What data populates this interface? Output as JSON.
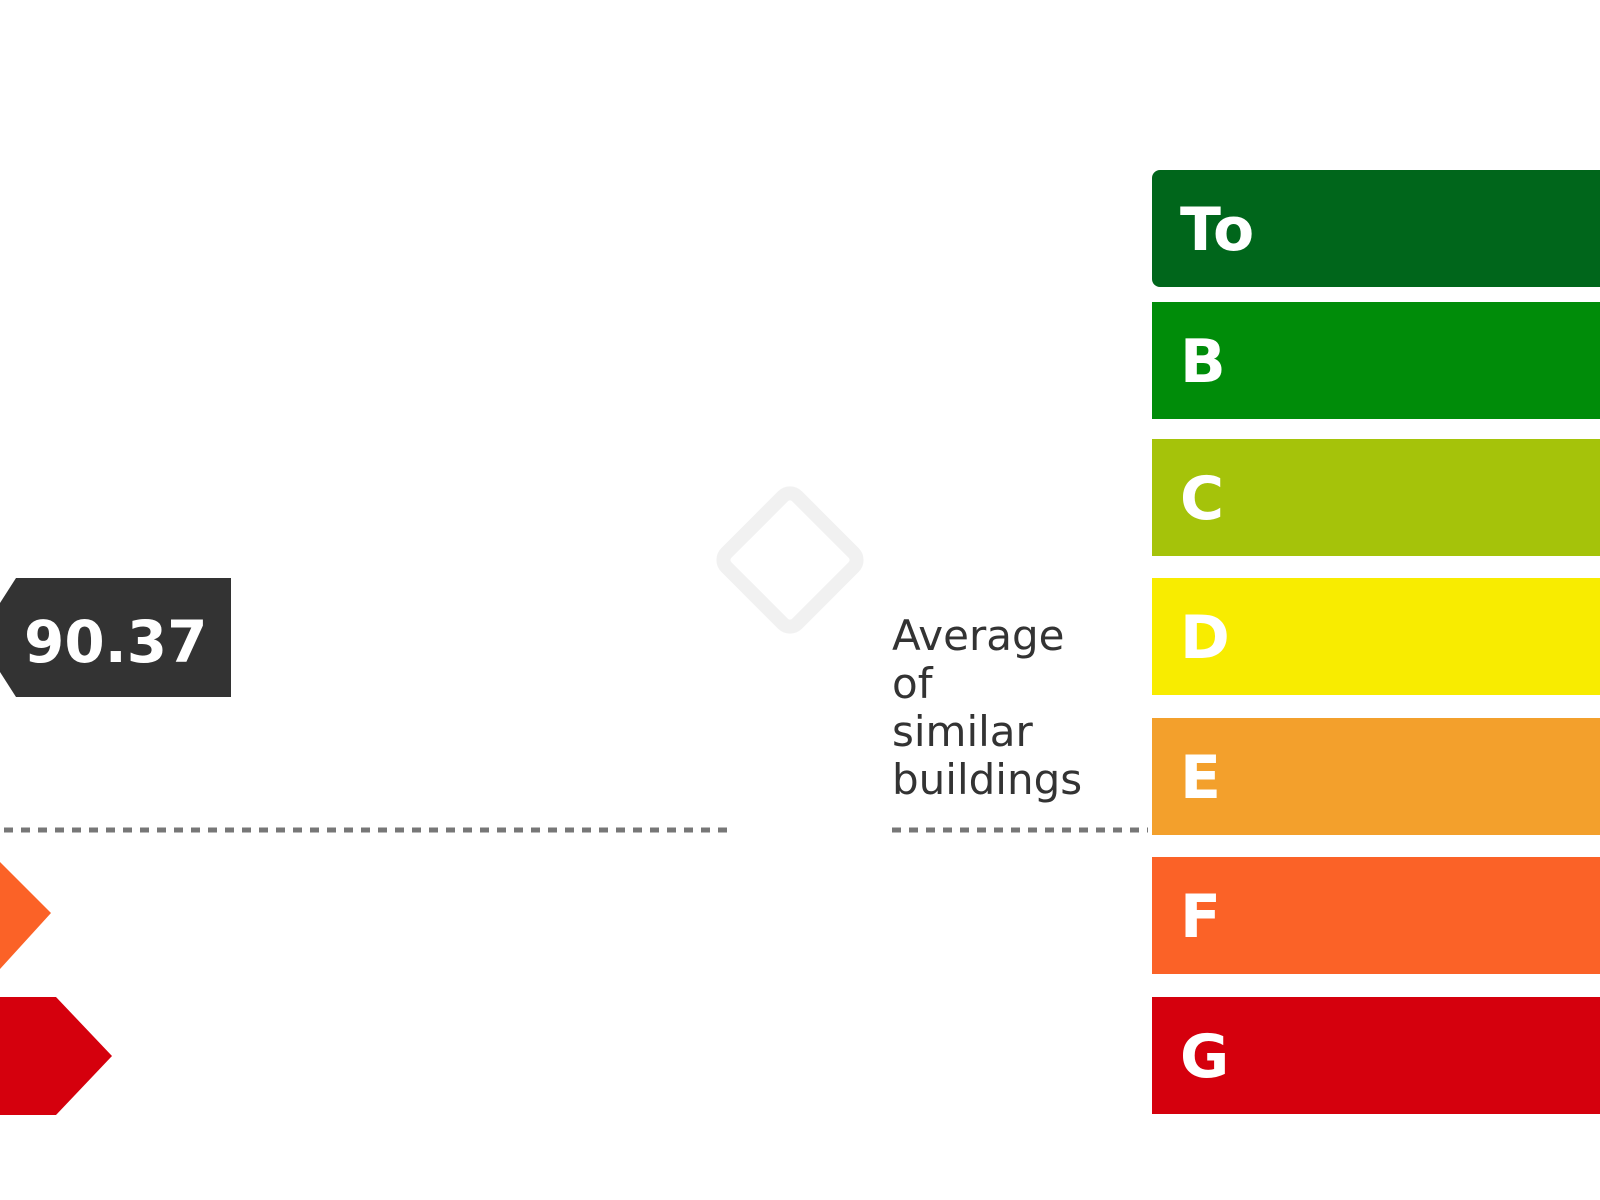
{
  "chart_data": {
    "type": "energy-rating",
    "categories": [
      "To",
      "B",
      "C",
      "D",
      "E",
      "F",
      "G"
    ],
    "colors": [
      "#00661b",
      "#008c09",
      "#a5c30a",
      "#f8ec00",
      "#f3a02c",
      "#fb6227",
      "#d5000d"
    ],
    "value": "90.37",
    "value_color": "#333333",
    "average_label": [
      "Average",
      "of",
      "similar",
      "buildings"
    ],
    "average_rating": "E",
    "left_markers": [
      "F",
      "G"
    ]
  }
}
